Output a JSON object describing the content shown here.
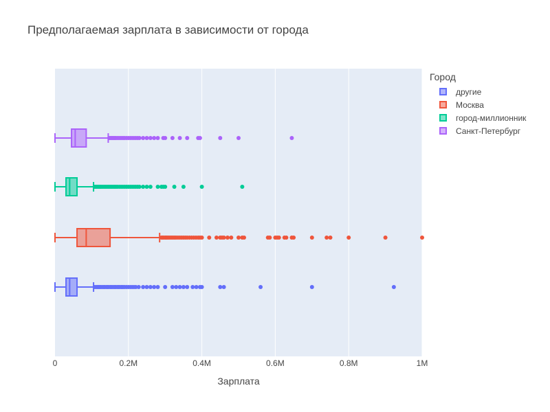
{
  "chart_data": {
    "type": "box",
    "orientation": "horizontal",
    "title": "Предполагаемая зарплата в зависимости от города",
    "xlabel": "Зарплата",
    "ylabel": "",
    "xlim": [
      0,
      1000000
    ],
    "x_ticks": [
      {
        "value": 0,
        "label": "0"
      },
      {
        "value": 200000,
        "label": "0.2M"
      },
      {
        "value": 400000,
        "label": "0.4M"
      },
      {
        "value": 600000,
        "label": "0.6M"
      },
      {
        "value": 800000,
        "label": "0.8M"
      },
      {
        "value": 1000000,
        "label": "1M"
      }
    ],
    "legend_title": "Город",
    "legend_position": "top-right",
    "grid": true,
    "series": [
      {
        "name": "другие",
        "color": "#636efa",
        "min": 0,
        "q1": 30000,
        "median": 40000,
        "q3": 60000,
        "upper_fence": 105000,
        "outliers": [
          108000,
          112000,
          115000,
          118000,
          120000,
          123000,
          126000,
          130000,
          133000,
          136000,
          140000,
          143000,
          146000,
          150000,
          153000,
          156000,
          160000,
          163000,
          166000,
          170000,
          173000,
          176000,
          180000,
          183000,
          186000,
          190000,
          195000,
          200000,
          205000,
          210000,
          215000,
          220000,
          228000,
          240000,
          250000,
          260000,
          270000,
          280000,
          300000,
          320000,
          330000,
          340000,
          350000,
          360000,
          375000,
          385000,
          395000,
          400000,
          450000,
          460000,
          560000,
          700000,
          923000
        ]
      },
      {
        "name": "Москва",
        "color": "#ef553b",
        "min": 0,
        "q1": 60000,
        "median": 85000,
        "q3": 150000,
        "upper_fence": 285000,
        "outliers": [
          290000,
          293000,
          296000,
          300000,
          303000,
          306000,
          310000,
          314000,
          318000,
          322000,
          326000,
          330000,
          335000,
          340000,
          345000,
          350000,
          355000,
          360000,
          366000,
          372000,
          378000,
          384000,
          390000,
          395000,
          400000,
          420000,
          440000,
          450000,
          455000,
          460000,
          470000,
          480000,
          500000,
          510000,
          515000,
          580000,
          585000,
          600000,
          605000,
          610000,
          625000,
          630000,
          645000,
          650000,
          700000,
          740000,
          750000,
          800000,
          900000,
          1000000
        ]
      },
      {
        "name": "город-миллионник",
        "color": "#00cc96",
        "min": 0,
        "q1": 30000,
        "median": 40000,
        "q3": 60000,
        "upper_fence": 105000,
        "outliers": [
          108000,
          111000,
          114000,
          117000,
          120000,
          123000,
          126000,
          130000,
          134000,
          138000,
          142000,
          146000,
          150000,
          154000,
          158000,
          162000,
          166000,
          170000,
          175000,
          180000,
          185000,
          190000,
          195000,
          200000,
          205000,
          210000,
          215000,
          220000,
          225000,
          230000,
          240000,
          250000,
          260000,
          280000,
          290000,
          295000,
          300000,
          325000,
          350000,
          400000,
          510000
        ]
      },
      {
        "name": "Санкт-Петербург",
        "color": "#ab63fa",
        "min": 0,
        "q1": 45000,
        "median": 55000,
        "q3": 85000,
        "upper_fence": 145000,
        "outliers": [
          148000,
          151000,
          154000,
          157000,
          160000,
          163000,
          166000,
          170000,
          174000,
          178000,
          182000,
          186000,
          190000,
          195000,
          200000,
          205000,
          210000,
          215000,
          220000,
          225000,
          230000,
          240000,
          250000,
          260000,
          270000,
          280000,
          295000,
          300000,
          320000,
          340000,
          360000,
          390000,
          395000,
          450000,
          500000,
          645000
        ]
      }
    ]
  }
}
